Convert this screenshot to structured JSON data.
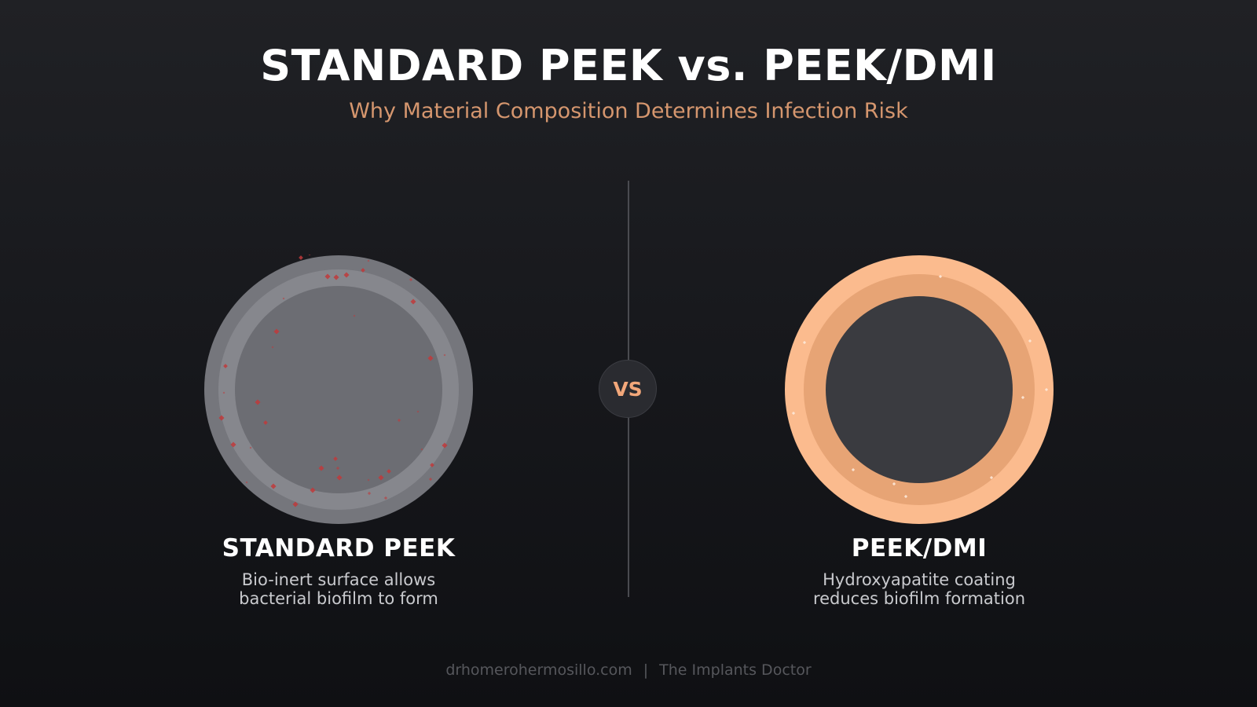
{
  "header": {
    "title": "STANDARD PEEK vs. PEEK/DMI",
    "subtitle": "Why Material Composition Determines Infection Risk"
  },
  "center": {
    "vs_label": "VS"
  },
  "left": {
    "label": "STANDARD PEEK",
    "description_line1": "Bio-inert surface allows",
    "description_line2": "bacterial biofilm to form",
    "colors": {
      "outer_ring": "#75767c",
      "middle_ring": "#86878d",
      "core": "#6c6d73",
      "bacteria": "#c0393b"
    },
    "icon": "biofilm-bacteria-dots"
  },
  "right": {
    "label": "PEEK/DMI",
    "description_line1": "Hydroxyapatite coating",
    "description_line2": "reduces biofilm formation",
    "colors": {
      "outer_ring": "#fbbb8e",
      "middle_ring": "#e7a475",
      "core": "#3a3b40",
      "sparkle": "#fde9d8"
    },
    "icon": "hydroxyapatite-sparkles"
  },
  "footer": {
    "site": "drhomerohermosillo.com",
    "separator": "|",
    "tagline": "The Implants Doctor"
  }
}
